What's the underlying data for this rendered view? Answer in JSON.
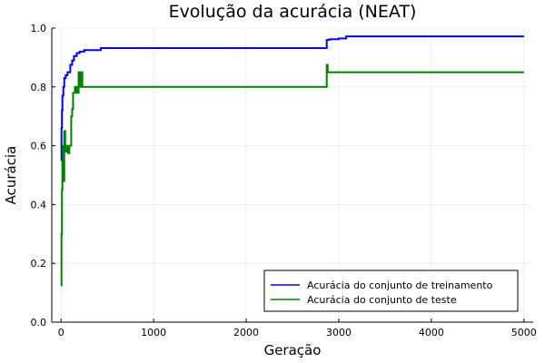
{
  "chart_data": {
    "type": "line",
    "title": "Evolução da acurácia (NEAT)",
    "xlabel": "Geração",
    "ylabel": "Acurácia",
    "xlim": [
      -100,
      5100
    ],
    "ylim": [
      0,
      1.0
    ],
    "xticks": [
      0,
      1000,
      2000,
      3000,
      4000,
      5000
    ],
    "xtick_labels": [
      "0",
      "1000",
      "2000",
      "3000",
      "4000",
      "5000"
    ],
    "yticks": [
      0,
      0.2,
      0.4,
      0.6,
      0.8,
      1.0
    ],
    "ytick_labels": [
      "0.0",
      "0.2",
      "0.4",
      "0.6",
      "0.8",
      "1.0"
    ],
    "grid": true,
    "legend_position": "bottom-right",
    "series": [
      {
        "name": "Acurácia do conjunto de treinamento",
        "color": "#0000ff",
        "step": true,
        "x": [
          1,
          5,
          10,
          15,
          25,
          35,
          50,
          70,
          100,
          120,
          140,
          170,
          200,
          250,
          300,
          430,
          1000,
          2000,
          2870,
          2900,
          3000,
          3080,
          4000,
          5000
        ],
        "y": [
          0.55,
          0.66,
          0.72,
          0.77,
          0.8,
          0.83,
          0.84,
          0.85,
          0.875,
          0.89,
          0.905,
          0.915,
          0.92,
          0.925,
          0.925,
          0.932,
          0.932,
          0.932,
          0.96,
          0.962,
          0.965,
          0.972,
          0.972,
          0.972
        ]
      },
      {
        "name": "Acurácia do conjunto de teste",
        "color": "#008000",
        "step": true,
        "x": [
          1,
          5,
          10,
          15,
          20,
          28,
          35,
          45,
          60,
          75,
          90,
          110,
          120,
          130,
          150,
          170,
          190,
          200,
          210,
          230,
          2870,
          2880,
          3000,
          4000,
          5000
        ],
        "y": [
          0.125,
          0.3,
          0.45,
          0.55,
          0.6,
          0.48,
          0.65,
          0.58,
          0.6,
          0.575,
          0.6,
          0.7,
          0.725,
          0.78,
          0.8,
          0.78,
          0.85,
          0.8,
          0.85,
          0.8,
          0.875,
          0.85,
          0.85,
          0.85,
          0.85
        ]
      }
    ]
  }
}
